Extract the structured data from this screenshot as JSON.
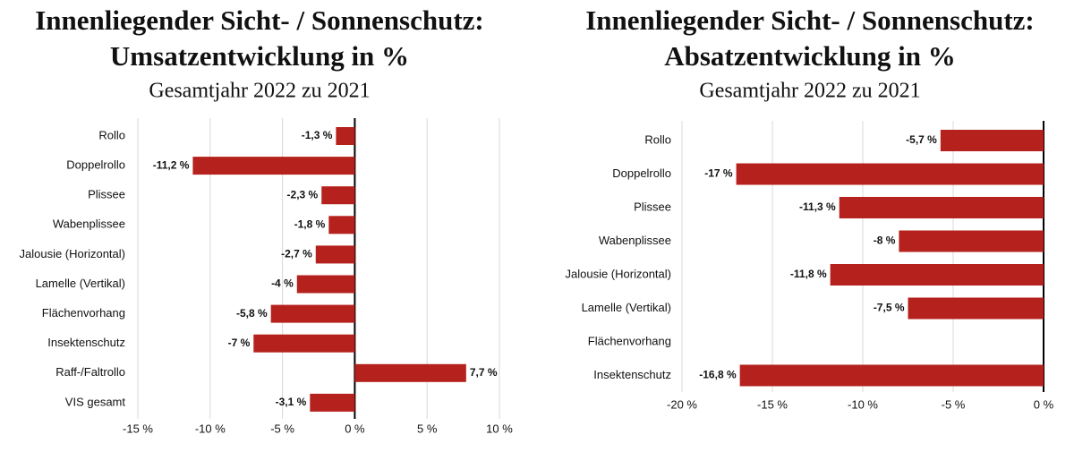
{
  "chart_data": [
    {
      "type": "hbar",
      "title": [
        "Innenliegender Sicht- / Sonnenschutz:",
        "Umsatzentwicklung in %"
      ],
      "subtitle": "Gesamtjahr 2022 zu 2021",
      "categories": [
        "Rollo",
        "Doppelrollo",
        "Plissee",
        "Wabenplissee",
        "Jalousie (Horizontal)",
        "Lamelle (Vertikal)",
        "Flächenvorhang",
        "Insektenschutz",
        "Raff-/Faltrollo",
        "VIS gesamt"
      ],
      "values": [
        -1.3,
        -11.2,
        -2.3,
        -1.8,
        -2.7,
        -4,
        -5.8,
        -7,
        7.7,
        -3.1
      ],
      "value_labels": [
        "-1,3 %",
        "-11,2 %",
        "-2,3 %",
        "-1,8 %",
        "-2,7 %",
        "-4 %",
        "-5,8 %",
        "-7 %",
        "7,7 %",
        "-3,1 %"
      ],
      "color": "#b5221d",
      "xlim": [
        -15,
        10
      ],
      "xticks": [
        {
          "value": -15,
          "label": "-15 %"
        },
        {
          "value": -10,
          "label": "-10 %"
        },
        {
          "value": -5,
          "label": "-5 %"
        },
        {
          "value": 0,
          "label": "0 %"
        },
        {
          "value": 5,
          "label": "5 %"
        },
        {
          "value": 10,
          "label": "10 %"
        }
      ],
      "grid": true
    },
    {
      "type": "hbar",
      "title": [
        "Innenliegender Sicht- / Sonnenschutz:",
        "Absatzentwicklung in %"
      ],
      "subtitle": "Gesamtjahr 2022 zu 2021",
      "categories": [
        "Rollo",
        "Doppelrollo",
        "Plissee",
        "Wabenplissee",
        "Jalousie (Horizontal)",
        "Lamelle (Vertikal)",
        "Flächenvorhang",
        "Insektenschutz"
      ],
      "values": [
        -5.7,
        -17,
        -11.3,
        -8,
        -11.8,
        -7.5,
        null,
        -16.8
      ],
      "value_labels": [
        "-5,7 %",
        "-17 %",
        "-11,3 %",
        "-8 %",
        "-11,8 %",
        "-7,5 %",
        null,
        "-16,8 %"
      ],
      "color": "#b5221d",
      "xlim": [
        -20,
        0
      ],
      "xticks": [
        {
          "value": -20,
          "label": "-20 %"
        },
        {
          "value": -15,
          "label": "-15 %"
        },
        {
          "value": -10,
          "label": "-10 %"
        },
        {
          "value": -5,
          "label": "-5 %"
        },
        {
          "value": 0,
          "label": "0 %"
        }
      ],
      "grid": true
    }
  ]
}
